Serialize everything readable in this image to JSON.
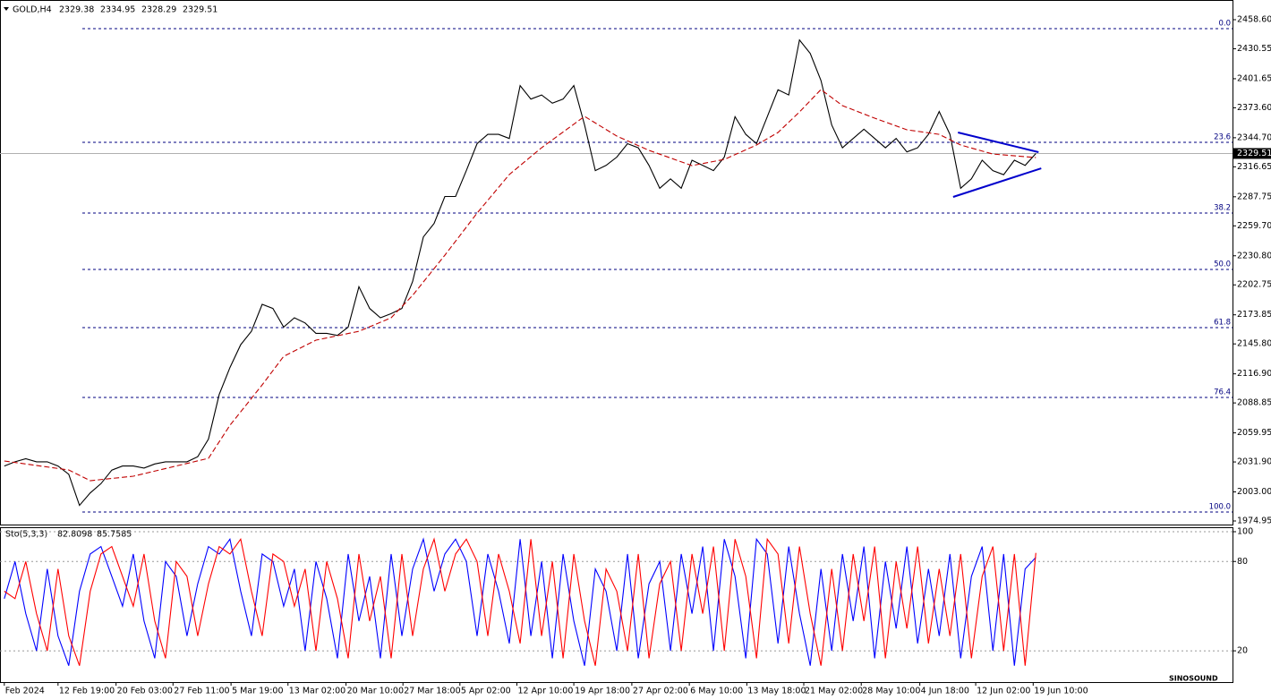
{
  "chart_data": [
    {
      "type": "line",
      "title": "GOLD,H4",
      "ohlc": [
        2329.38,
        2334.95,
        2328.29,
        2329.51
      ],
      "last_price": 2329.51,
      "xlim": [
        -0.4,
        114.3
      ],
      "ylim": [
        1971.5,
        2477.6
      ],
      "yticks": [
        {
          "value": 2458.6,
          "label": "2458.60"
        },
        2430.55,
        2401.65,
        {
          "value": 2373.6,
          "label": "2373.60"
        },
        {
          "value": 2344.7,
          "label": "2344.70"
        },
        2316.65,
        2287.75,
        {
          "value": 2259.7,
          "label": "2259.70"
        },
        {
          "value": 2230.8,
          "label": "2230.80"
        },
        2202.75,
        2173.85,
        {
          "value": 2145.8,
          "label": "2145.80"
        },
        {
          "value": 2116.9,
          "label": "2116.90"
        },
        2088.85,
        2059.95,
        {
          "value": 2031.9,
          "label": "2031.90"
        },
        {
          "value": 2003.0,
          "label": "2003.00"
        },
        1974.95
      ],
      "xticks": [
        {
          "value": 0,
          "label": "Feb 2024"
        },
        {
          "value": 5.0,
          "label": "12 Feb 19:00"
        },
        {
          "value": 10.4,
          "label": "20 Feb 03:00"
        },
        {
          "value": 15.7,
          "label": "27 Feb 11:00"
        },
        {
          "value": 21.1,
          "label": "5 Mar 19:00"
        },
        {
          "value": 26.4,
          "label": "13 Mar 02:00"
        },
        {
          "value": 31.8,
          "label": "20 Mar 10:00"
        },
        {
          "value": 37.1,
          "label": "27 Mar 18:00"
        },
        {
          "value": 42.4,
          "label": "5 Apr 02:00"
        },
        {
          "value": 47.7,
          "label": "12 Apr 10:00"
        },
        {
          "value": 53.0,
          "label": "19 Apr 18:00"
        },
        {
          "value": 58.4,
          "label": "27 Apr 02:00"
        },
        {
          "value": 63.75,
          "label": "6 May 10:00"
        },
        {
          "value": 69.1,
          "label": "13 May 18:00"
        },
        {
          "value": 74.4,
          "label": "21 May 02:00"
        },
        {
          "value": 79.75,
          "label": "28 May 10:00"
        },
        {
          "value": 85.2,
          "label": "4 Jun 18:00"
        },
        {
          "value": 90.4,
          "label": "12 Jun 02:00"
        },
        {
          "value": 95.75,
          "label": "19 Jun 10:00"
        }
      ],
      "fib_levels": [
        {
          "label": "0.0",
          "price": 2449.96
        },
        {
          "label": "23.6",
          "price": 2340.27
        },
        {
          "label": "38.2",
          "price": 2272.0
        },
        {
          "label": "50.0",
          "price": 2217.6
        },
        {
          "label": "61.8",
          "price": 2161.5
        },
        {
          "label": "76.4",
          "price": 2094.1
        },
        {
          "label": "100.0",
          "price": 1983.6
        }
      ],
      "series": [
        {
          "color": "#000000",
          "values": [
            2028,
            2032,
            2035,
            2032,
            2032,
            2028,
            2020,
            1990,
            2002,
            2011,
            2024,
            2028,
            2028,
            2026,
            2030,
            2032,
            2032,
            2032,
            2037,
            2054,
            2097,
            2123,
            2145,
            2158,
            2184,
            2180,
            2162,
            2171,
            2166,
            2156,
            2156,
            2154,
            2162,
            2201,
            2180,
            2171,
            2175,
            2180,
            2206,
            2249,
            2262,
            2288,
            2288,
            2313,
            2339,
            2348,
            2348,
            2344,
            2395,
            2382,
            2386,
            2378,
            2382,
            2395,
            2357,
            2313,
            2318,
            2326,
            2339,
            2335,
            2318,
            2296,
            2305,
            2296,
            2323,
            2318,
            2313,
            2326,
            2365,
            2348,
            2339,
            2365,
            2391,
            2386,
            2439,
            2426,
            2400,
            2357,
            2335,
            2344,
            2353,
            2344,
            2335,
            2344,
            2331,
            2335,
            2348,
            2370,
            2348,
            2296,
            2305,
            2323,
            2313,
            2309,
            2323,
            2318,
            2329.51
          ]
        },
        {
          "color": "#c00000",
          "x": [
            0,
            6,
            8,
            12,
            19,
            21,
            24,
            26,
            29,
            33,
            36,
            38,
            41,
            44,
            47,
            50,
            54,
            57,
            60,
            64,
            67,
            70,
            72,
            74,
            76,
            78,
            81,
            84,
            87,
            89,
            92,
            96
          ],
          "values": [
            2032.8,
            2024.2,
            2013.8,
            2018.1,
            2035.4,
            2067.3,
            2106.2,
            2133.8,
            2149.4,
            2158.0,
            2171.0,
            2192.6,
            2231.4,
            2272.0,
            2309.2,
            2335.1,
            2365.3,
            2346.3,
            2332.5,
            2317.8,
            2323.8,
            2337.7,
            2349.8,
            2369.6,
            2391.2,
            2375.7,
            2363.6,
            2352.4,
            2348.0,
            2337.7,
            2329.0,
            2325.6
          ]
        }
      ],
      "trendlines": [
        {
          "color": "#0000cc",
          "x": [
            88.75,
            96.25
          ],
          "values": [
            2349.8,
            2330.8
          ]
        },
        {
          "color": "#0000cc",
          "x": [
            88.3,
            96.5
          ],
          "values": [
            2287.6,
            2315.2
          ]
        }
      ],
      "watermark": "SINOSOUND"
    },
    {
      "type": "line",
      "title": "Sto(5,3,3)",
      "readout": [
        82.8098,
        85.7585
      ],
      "xlim": [
        -0.4,
        114.3
      ],
      "ylim": [
        -1,
        103
      ],
      "yticks": [
        20,
        80,
        100
      ],
      "series": [
        {
          "color": "#0000ff",
          "values": [
            55,
            80,
            45,
            20,
            75,
            30,
            10,
            60,
            85,
            90,
            70,
            50,
            85,
            40,
            15,
            80,
            70,
            30,
            65,
            90,
            85,
            95,
            60,
            30,
            85,
            80,
            50,
            75,
            20,
            80,
            55,
            15,
            85,
            40,
            70,
            15,
            85,
            30,
            75,
            95,
            60,
            85,
            95,
            80,
            30,
            85,
            60,
            25,
            95,
            30,
            80,
            15,
            85,
            40,
            10,
            75,
            60,
            20,
            85,
            15,
            65,
            80,
            20,
            85,
            45,
            90,
            20,
            95,
            70,
            15,
            95,
            85,
            25,
            90,
            45,
            10,
            75,
            20,
            85,
            40,
            90,
            15,
            80,
            35,
            90,
            25,
            75,
            30,
            85,
            15,
            70,
            90,
            20,
            85,
            10,
            75,
            82.8098
          ]
        },
        {
          "color": "#ff0000",
          "values": [
            60,
            55,
            80,
            45,
            20,
            75,
            30,
            10,
            60,
            85,
            90,
            70,
            50,
            85,
            40,
            15,
            80,
            70,
            30,
            65,
            90,
            85,
            95,
            60,
            30,
            85,
            80,
            50,
            75,
            20,
            80,
            55,
            15,
            85,
            40,
            70,
            15,
            85,
            30,
            75,
            95,
            60,
            85,
            95,
            80,
            30,
            85,
            60,
            25,
            95,
            30,
            80,
            15,
            85,
            40,
            10,
            75,
            60,
            20,
            85,
            15,
            65,
            80,
            20,
            85,
            45,
            90,
            20,
            95,
            70,
            15,
            95,
            85,
            25,
            90,
            45,
            10,
            75,
            20,
            85,
            40,
            90,
            15,
            80,
            35,
            90,
            25,
            75,
            30,
            85,
            15,
            70,
            90,
            20,
            85,
            10,
            85.7585
          ]
        }
      ]
    }
  ]
}
